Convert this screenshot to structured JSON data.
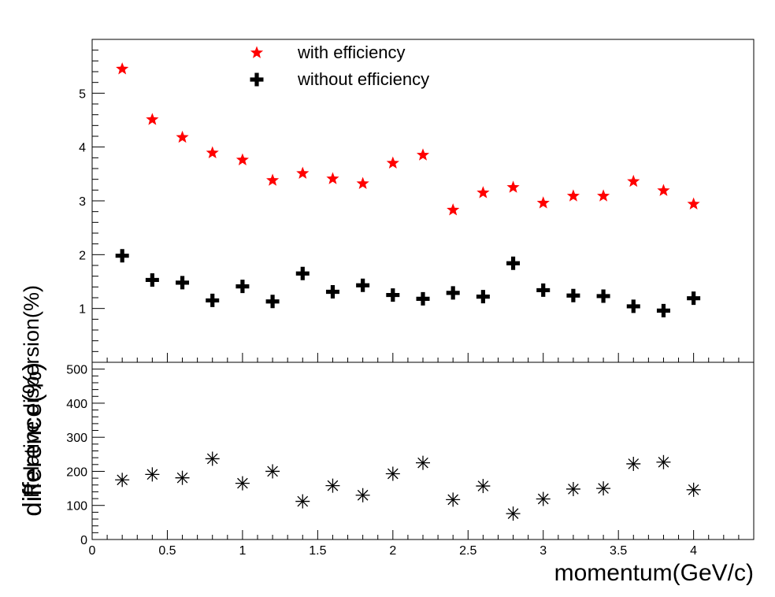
{
  "chart_data": [
    {
      "type": "scatter",
      "ylabel": "Relative dispersion(%)",
      "ylim": [
        0,
        6
      ],
      "yticks": [
        1,
        2,
        3,
        4,
        5
      ],
      "x": [
        0.2,
        0.4,
        0.6,
        0.8,
        1.0,
        1.2,
        1.4,
        1.6,
        1.8,
        2.0,
        2.2,
        2.4,
        2.6,
        2.8,
        3.0,
        3.2,
        3.4,
        3.6,
        3.8,
        4.0
      ],
      "series": [
        {
          "name": "with efficiency",
          "color": "#ff0000",
          "marker": "star",
          "values": [
            5.45,
            4.51,
            4.18,
            3.89,
            3.76,
            3.38,
            3.51,
            3.41,
            3.32,
            3.7,
            3.85,
            2.83,
            3.15,
            3.25,
            2.96,
            3.09,
            3.09,
            3.36,
            3.19,
            2.94
          ]
        },
        {
          "name": "without efficiency",
          "color": "#000000",
          "marker": "cross",
          "values": [
            1.98,
            1.53,
            1.48,
            1.15,
            1.41,
            1.13,
            1.65,
            1.31,
            1.43,
            1.25,
            1.18,
            1.29,
            1.22,
            1.84,
            1.34,
            1.24,
            1.23,
            1.04,
            0.96,
            1.19
          ]
        }
      ],
      "legend_position": "top"
    },
    {
      "type": "scatter",
      "ylabel": "difference(%)",
      "xlabel": "momentum(GeV/c)",
      "xlim": [
        0,
        4.4
      ],
      "ylim": [
        0,
        520
      ],
      "xticks": [
        "0",
        "0.5",
        "1",
        "1.5",
        "2",
        "2.5",
        "3",
        "3.5",
        "4"
      ],
      "yticks": [
        "0",
        "100",
        "200",
        "300",
        "400",
        "500"
      ],
      "x": [
        0.2,
        0.4,
        0.6,
        0.8,
        1.0,
        1.2,
        1.4,
        1.6,
        1.8,
        2.0,
        2.2,
        2.4,
        2.6,
        2.8,
        3.0,
        3.2,
        3.4,
        3.6,
        3.8,
        4.0
      ],
      "series": [
        {
          "color": "#000000",
          "marker": "asterisk",
          "values": [
            175,
            191,
            181,
            237,
            165,
            200,
            112,
            158,
            130,
            193,
            225,
            117,
            157,
            76,
            119,
            148,
            150,
            222,
            227,
            146
          ]
        }
      ]
    }
  ]
}
